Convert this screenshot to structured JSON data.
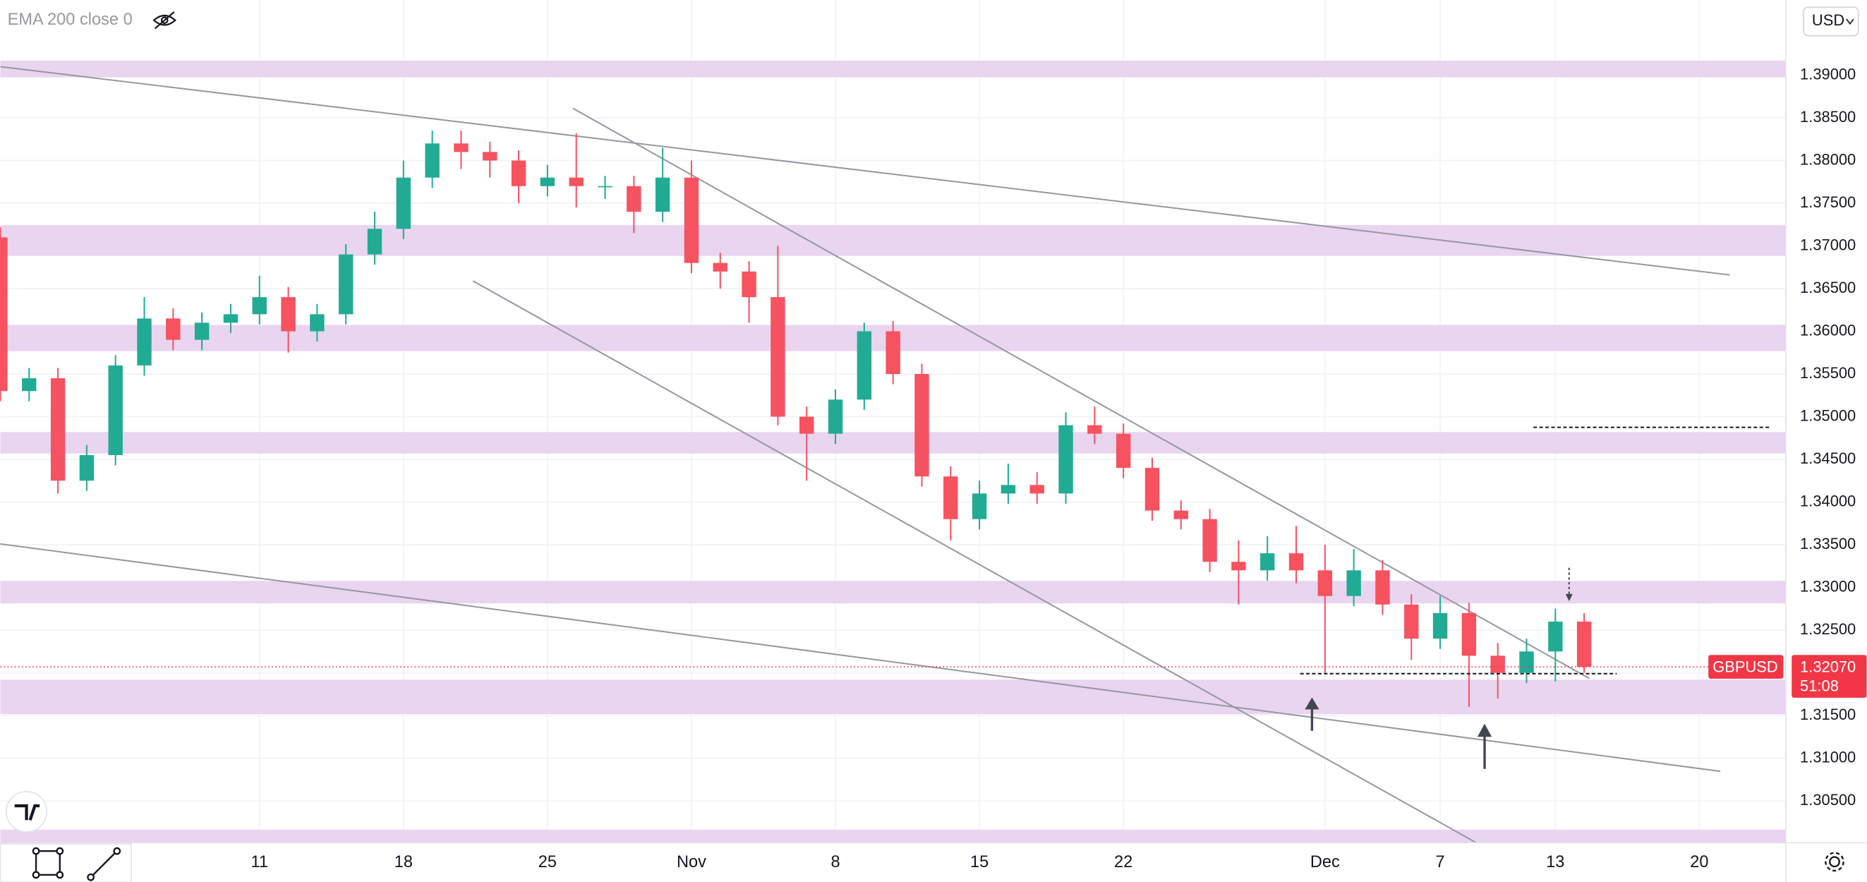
{
  "chart_data": {
    "type": "candlestick",
    "indicator": "EMA 200 close 0",
    "currency": "USD",
    "up_color": "#22ab94",
    "down_color": "#f7525f",
    "grid": true,
    "xlim": [
      -9,
      53
    ],
    "ylim": [
      1.3001,
      1.3988
    ],
    "xticks": [
      {
        "value": 0,
        "label": "11"
      },
      {
        "value": 5,
        "label": "18"
      },
      {
        "value": 10,
        "label": "25"
      },
      {
        "value": 15,
        "label": "Nov"
      },
      {
        "value": 20,
        "label": "8"
      },
      {
        "value": 25,
        "label": "15"
      },
      {
        "value": 30,
        "label": "22"
      },
      {
        "value": 37,
        "label": "Dec"
      },
      {
        "value": 41,
        "label": "7"
      },
      {
        "value": 45,
        "label": "13"
      },
      {
        "value": 50,
        "label": "20"
      }
    ],
    "yticks": [
      {
        "value": 1.305,
        "label": "1.30500"
      },
      {
        "value": 1.31,
        "label": "1.31000"
      },
      {
        "value": 1.315,
        "label": "1.31500"
      },
      {
        "value": 1.32,
        "label": "1.32000"
      },
      {
        "value": 1.325,
        "label": "1.32500"
      },
      {
        "value": 1.33,
        "label": "1.33000"
      },
      {
        "value": 1.335,
        "label": "1.33500"
      },
      {
        "value": 1.34,
        "label": "1.34000"
      },
      {
        "value": 1.345,
        "label": "1.34500"
      },
      {
        "value": 1.35,
        "label": "1.35000"
      },
      {
        "value": 1.355,
        "label": "1.35500"
      },
      {
        "value": 1.36,
        "label": "1.36000"
      },
      {
        "value": 1.365,
        "label": "1.36500"
      },
      {
        "value": 1.37,
        "label": "1.37000"
      },
      {
        "value": 1.375,
        "label": "1.37500"
      },
      {
        "value": 1.38,
        "label": "1.38000"
      },
      {
        "value": 1.385,
        "label": "1.38500"
      },
      {
        "value": 1.39,
        "label": "1.39000"
      }
    ],
    "x": [
      -9,
      -8,
      -7,
      -6,
      -5,
      -4,
      -3,
      -2,
      -1,
      0,
      1,
      2,
      3,
      4,
      5,
      6,
      7,
      8,
      9,
      10,
      11,
      12,
      13,
      14,
      15,
      16,
      17,
      18,
      19,
      20,
      21,
      22,
      23,
      24,
      25,
      26,
      27,
      28,
      29,
      30,
      31,
      32,
      33,
      34,
      35,
      36,
      37,
      38,
      39,
      40,
      41,
      42,
      43,
      44,
      45,
      46
    ],
    "open": [
      1.371,
      1.353,
      1.3545,
      1.3425,
      1.3455,
      1.356,
      1.3615,
      1.359,
      1.361,
      1.362,
      1.364,
      1.36,
      1.362,
      1.369,
      1.372,
      1.378,
      1.382,
      1.381,
      1.38,
      1.377,
      1.378,
      1.377,
      1.377,
      1.374,
      1.378,
      1.368,
      1.367,
      1.364,
      1.35,
      1.348,
      1.352,
      1.36,
      1.355,
      1.343,
      1.338,
      1.341,
      1.342,
      1.341,
      1.349,
      1.348,
      1.344,
      1.339,
      1.338,
      1.333,
      1.332,
      1.334,
      1.332,
      1.329,
      1.332,
      1.328,
      1.324,
      1.327,
      1.322,
      1.32,
      1.3225,
      1.326
    ],
    "high": [
      1.3722,
      1.3557,
      1.3557,
      1.3467,
      1.3572,
      1.364,
      1.3627,
      1.3622,
      1.3632,
      1.3665,
      1.3652,
      1.3632,
      1.3702,
      1.374,
      1.38,
      1.3835,
      1.3835,
      1.3822,
      1.3812,
      1.3795,
      1.3832,
      1.3782,
      1.3782,
      1.3815,
      1.38,
      1.3692,
      1.3682,
      1.37,
      1.3512,
      1.3532,
      1.361,
      1.3612,
      1.3562,
      1.3442,
      1.3425,
      1.3445,
      1.3435,
      1.3505,
      1.3512,
      1.3492,
      1.3452,
      1.3402,
      1.3392,
      1.3355,
      1.336,
      1.3372,
      1.335,
      1.3345,
      1.3332,
      1.3292,
      1.329,
      1.3282,
      1.3235,
      1.324,
      1.3275,
      1.327
    ],
    "low": [
      1.3518,
      1.3518,
      1.341,
      1.3413,
      1.3443,
      1.3548,
      1.3578,
      1.3578,
      1.3598,
      1.3608,
      1.3575,
      1.3588,
      1.3608,
      1.3678,
      1.3708,
      1.3768,
      1.379,
      1.378,
      1.375,
      1.3758,
      1.3745,
      1.3755,
      1.3715,
      1.3728,
      1.3668,
      1.365,
      1.361,
      1.349,
      1.3425,
      1.3468,
      1.3508,
      1.3538,
      1.3418,
      1.3355,
      1.3368,
      1.3398,
      1.3398,
      1.3398,
      1.3468,
      1.3428,
      1.3378,
      1.3368,
      1.3318,
      1.328,
      1.3308,
      1.3305,
      1.32,
      1.3278,
      1.3268,
      1.3215,
      1.3228,
      1.316,
      1.317,
      1.3188,
      1.319,
      1.32
    ],
    "close": [
      1.353,
      1.3545,
      1.3425,
      1.3455,
      1.356,
      1.3615,
      1.359,
      1.361,
      1.362,
      1.364,
      1.36,
      1.362,
      1.369,
      1.372,
      1.378,
      1.382,
      1.381,
      1.38,
      1.377,
      1.378,
      1.377,
      1.377,
      1.374,
      1.378,
      1.368,
      1.367,
      1.364,
      1.35,
      1.348,
      1.352,
      1.36,
      1.355,
      1.343,
      1.338,
      1.341,
      1.342,
      1.341,
      1.349,
      1.348,
      1.344,
      1.339,
      1.338,
      1.333,
      1.332,
      1.334,
      1.332,
      1.329,
      1.332,
      1.328,
      1.324,
      1.327,
      1.322,
      1.32,
      1.3225,
      1.326,
      1.3207
    ],
    "price_tag": {
      "symbol": "GBPUSD",
      "value": 1.3207,
      "label": "1.32070",
      "countdown": "51:08",
      "color": "#f23645"
    }
  }
}
